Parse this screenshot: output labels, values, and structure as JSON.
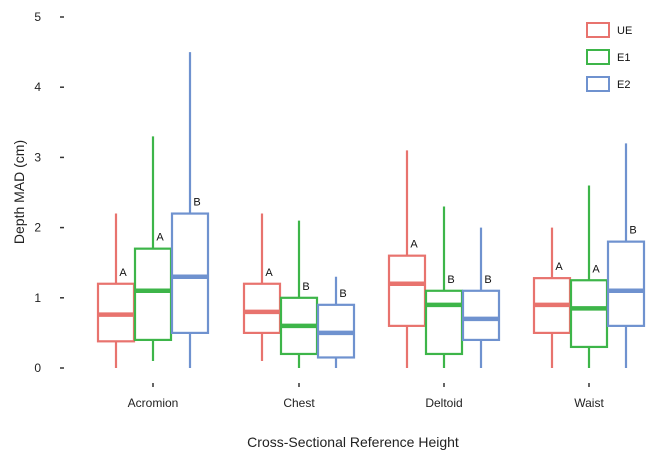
{
  "chart_data": {
    "type": "boxplot",
    "xlabel": "Cross-Sectional Reference Height",
    "ylabel": "Depth MAD (cm)",
    "ylim": [
      0,
      5
    ],
    "yticks": [
      0,
      1,
      2,
      3,
      4,
      5
    ],
    "categories": [
      "Acromion",
      "Chest",
      "Deltoid",
      "Waist"
    ],
    "grid": false,
    "legend_position": "top-right",
    "series": [
      {
        "name": "UE",
        "color": "#E8736E",
        "boxes": [
          {
            "min": 0.0,
            "q1": 0.38,
            "median": 0.76,
            "q3": 1.2,
            "max": 2.2,
            "label": "A"
          },
          {
            "min": 0.1,
            "q1": 0.5,
            "median": 0.8,
            "q3": 1.2,
            "max": 2.2,
            "label": "A"
          },
          {
            "min": 0.0,
            "q1": 0.6,
            "median": 1.2,
            "q3": 1.6,
            "max": 3.1,
            "label": "A"
          },
          {
            "min": 0.0,
            "q1": 0.5,
            "median": 0.9,
            "q3": 1.28,
            "max": 2.0,
            "label": "A"
          }
        ]
      },
      {
        "name": "E1",
        "color": "#3DB549",
        "boxes": [
          {
            "min": 0.1,
            "q1": 0.4,
            "median": 1.1,
            "q3": 1.7,
            "max": 3.3,
            "label": "A"
          },
          {
            "min": 0.0,
            "q1": 0.2,
            "median": 0.6,
            "q3": 1.0,
            "max": 2.1,
            "label": "B"
          },
          {
            "min": 0.0,
            "q1": 0.2,
            "median": 0.9,
            "q3": 1.1,
            "max": 2.3,
            "label": "B"
          },
          {
            "min": 0.0,
            "q1": 0.3,
            "median": 0.85,
            "q3": 1.25,
            "max": 2.6,
            "label": "A"
          }
        ]
      },
      {
        "name": "E2",
        "color": "#6F92CF",
        "boxes": [
          {
            "min": 0.0,
            "q1": 0.5,
            "median": 1.3,
            "q3": 2.2,
            "max": 4.5,
            "label": "B"
          },
          {
            "min": 0.0,
            "q1": 0.15,
            "median": 0.5,
            "q3": 0.9,
            "max": 1.3,
            "label": "B"
          },
          {
            "min": 0.0,
            "q1": 0.4,
            "median": 0.7,
            "q3": 1.1,
            "max": 2.0,
            "label": "B"
          },
          {
            "min": 0.0,
            "q1": 0.6,
            "median": 1.1,
            "q3": 1.8,
            "max": 3.2,
            "label": "B"
          }
        ]
      }
    ]
  }
}
